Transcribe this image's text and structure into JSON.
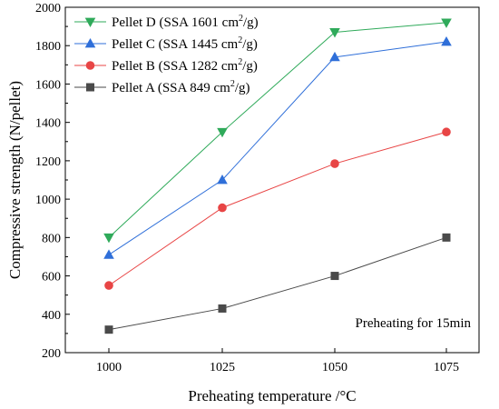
{
  "chart_data": {
    "type": "line",
    "title": "",
    "xlabel": "Preheating temperature /°C",
    "ylabel": "Compressive strength (N/pellet)",
    "categories": [
      "1000",
      "1025",
      "1050",
      "1075"
    ],
    "x_ticks": [
      "1000",
      "1025",
      "1050",
      "1075"
    ],
    "y_ticks": [
      "200",
      "400",
      "600",
      "800",
      "1000",
      "1200",
      "1400",
      "1600",
      "1800",
      "2000"
    ],
    "ylim": [
      200,
      2000
    ],
    "legend_position": "top-left",
    "annotation": "Preheating for 15min",
    "series": [
      {
        "name": "Pellet A (SSA 849 cm²/g)",
        "legend_main": "Pellet A (SSA 849 cm",
        "legend_sup": "2",
        "legend_tail": "/g)",
        "values": [
          320,
          430,
          600,
          800
        ],
        "color": "#4a4a4a",
        "marker": "square"
      },
      {
        "name": "Pellet B (SSA 1282 cm²/g)",
        "legend_main": "Pellet B (SSA 1282 cm",
        "legend_sup": "2",
        "legend_tail": "/g)",
        "values": [
          550,
          955,
          1185,
          1350
        ],
        "color": "#e84545",
        "marker": "circle"
      },
      {
        "name": "Pellet C (SSA 1445 cm²/g)",
        "legend_main": "Pellet C (SSA 1445 cm",
        "legend_sup": "2",
        "legend_tail": "/g)",
        "values": [
          710,
          1100,
          1740,
          1820
        ],
        "color": "#2f6fd9",
        "marker": "triangle-up"
      },
      {
        "name": "Pellet D (SSA 1601 cm²/g)",
        "legend_main": "Pellet D (SSA 1601 cm",
        "legend_sup": "2",
        "legend_tail": "/g)",
        "values": [
          800,
          1350,
          1870,
          1920
        ],
        "color": "#2faa5a",
        "marker": "triangle-down"
      }
    ]
  }
}
